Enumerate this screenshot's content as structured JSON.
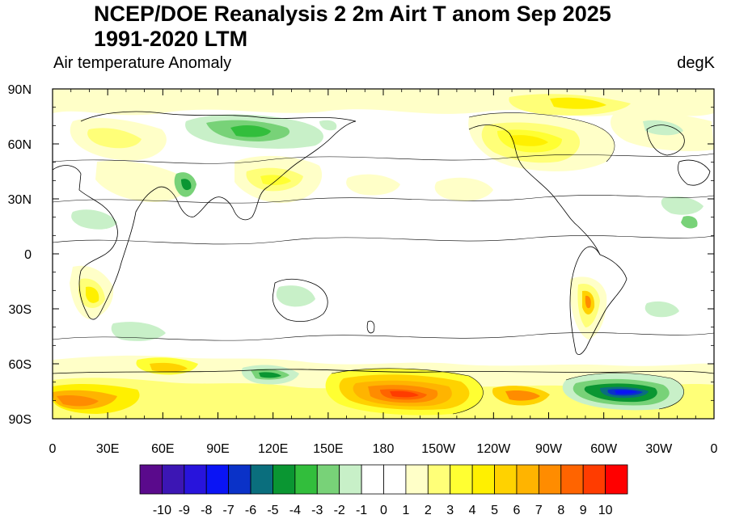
{
  "title": {
    "line1": "NCEP/DOE Reanalysis 2 2m Airt T anom Sep 2025",
    "line2": "1991-2020 LTM"
  },
  "subtitle": {
    "left": "Air temperature Anomaly",
    "right": "degK"
  },
  "axes": {
    "x_ticks": [
      "0",
      "30E",
      "60E",
      "90E",
      "120E",
      "150E",
      "180",
      "150W",
      "120W",
      "90W",
      "60W",
      "30W",
      "0"
    ],
    "x_degrees": [
      0,
      30,
      60,
      90,
      120,
      150,
      180,
      210,
      240,
      270,
      300,
      330,
      360
    ],
    "y_ticks": [
      "90N",
      "60N",
      "30N",
      "0",
      "30S",
      "60S",
      "90S"
    ],
    "y_degrees": [
      90,
      60,
      30,
      0,
      -30,
      -60,
      -90
    ]
  },
  "colorbar": {
    "labels": [
      "-10",
      "-9",
      "-8",
      "-7",
      "-6",
      "-5",
      "-4",
      "-3",
      "-2",
      "-1",
      "0",
      "1",
      "2",
      "3",
      "4",
      "5",
      "6",
      "7",
      "8",
      "9",
      "10"
    ],
    "colors": [
      "#5a0a8c",
      "#3c16b4",
      "#2814dc",
      "#0a14f5",
      "#0a32c8",
      "#0a6e7d",
      "#0a9632",
      "#32be3c",
      "#78d278",
      "#c8f0c8",
      "#ffffff",
      "#ffffff",
      "#ffffc8",
      "#ffff78",
      "#ffff32",
      "#fff000",
      "#ffd200",
      "#ffb400",
      "#ff8c00",
      "#ff6400",
      "#ff3c00",
      "#ff0000"
    ]
  },
  "map_data": {
    "type": "contour-map",
    "variable": "2m air temperature anomaly",
    "units": "degK",
    "period": "Sep 2025",
    "baseline": "1991-2020 LTM",
    "notable_anomalies": [
      {
        "region": "Central Siberia",
        "anomaly": -2.5
      },
      {
        "region": "Alaska / Yukon",
        "anomaly": 3
      },
      {
        "region": "Arctic Canada",
        "anomaly": 3.5
      },
      {
        "region": "Eastern Europe",
        "anomaly": 1.5
      },
      {
        "region": "Central Asia",
        "anomaly": 1
      },
      {
        "region": "Tibetan Plateau",
        "anomaly": -5
      },
      {
        "region": "Northeast China",
        "anomaly": 2
      },
      {
        "region": "Southern Africa",
        "anomaly": 3
      },
      {
        "region": "Argentina",
        "anomaly": 4
      },
      {
        "region": "East Antarctica (Wilkes Land)",
        "anomaly": -3
      },
      {
        "region": "Ross Sea sector, Antarctica",
        "anomaly": 9
      },
      {
        "region": "Weddell Sea, Antarctica",
        "anomaly": -8
      },
      {
        "region": "Queen Maud Land, Antarctica",
        "anomaly": 5
      }
    ]
  }
}
